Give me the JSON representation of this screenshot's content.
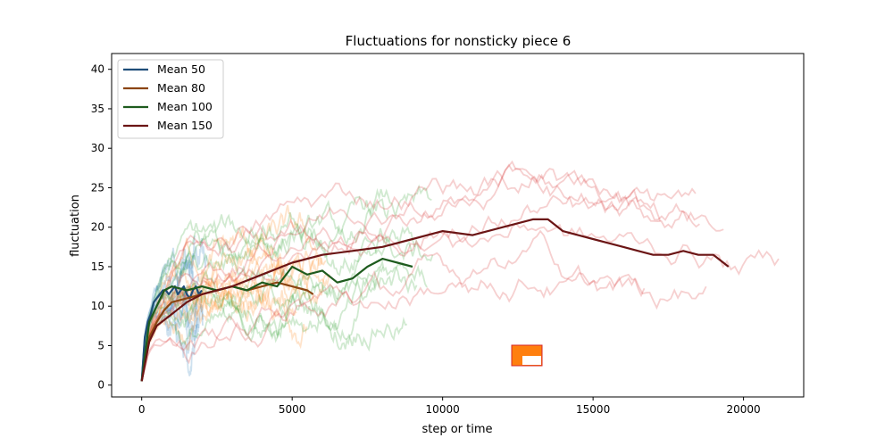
{
  "chart_data": {
    "type": "line",
    "title": "Fluctuations for nonsticky piece 6",
    "xlabel": "step or time",
    "ylabel": "fluctuation",
    "xlim": [
      -1000,
      22000
    ],
    "ylim": [
      -1.5,
      42
    ],
    "xticks": [
      0,
      5000,
      10000,
      15000,
      20000
    ],
    "xtick_labels": [
      "0",
      "5000",
      "10000",
      "15000",
      "20000"
    ],
    "yticks": [
      0,
      5,
      10,
      15,
      20,
      25,
      30,
      35,
      40
    ],
    "ytick_labels": [
      "0",
      "5",
      "10",
      "15",
      "20",
      "25",
      "30",
      "35",
      "40"
    ],
    "grid": false,
    "legend": {
      "position": "top-left",
      "entries": [
        "Mean 50",
        "Mean 80",
        "Mean 100",
        "Mean 150"
      ]
    },
    "series": [
      {
        "name": "Mean 50",
        "color": "#1f4e79",
        "x": [
          0,
          100,
          200,
          300,
          400,
          500,
          600,
          700,
          800,
          900,
          1000,
          1100,
          1200,
          1300,
          1400,
          1500,
          1600,
          1700,
          1800,
          1900,
          2000
        ],
        "y": [
          0.5,
          6.0,
          8.0,
          9.0,
          10.5,
          11.0,
          11.5,
          12.0,
          12.0,
          11.5,
          12.0,
          12.5,
          11.5,
          12.0,
          12.5,
          11.5,
          11.0,
          12.0,
          12.5,
          11.5,
          12.0
        ]
      },
      {
        "name": "Mean 80",
        "color": "#8b4513",
        "x": [
          0,
          250,
          500,
          750,
          1000,
          1500,
          2000,
          2500,
          3000,
          3500,
          4000,
          4500,
          5000,
          5500,
          5700
        ],
        "y": [
          0.5,
          6.0,
          8.0,
          9.5,
          10.5,
          11.0,
          11.5,
          12.0,
          12.5,
          12.0,
          12.5,
          13.0,
          12.5,
          12.0,
          11.5
        ]
      },
      {
        "name": "Mean 100",
        "color": "#1e5b1e",
        "x": [
          0,
          250,
          500,
          750,
          1000,
          1500,
          2000,
          2500,
          3000,
          3500,
          4000,
          4500,
          5000,
          5500,
          6000,
          6500,
          7000,
          7500,
          8000,
          8500,
          9000
        ],
        "y": [
          0.5,
          8.0,
          10.0,
          12.0,
          12.5,
          12.0,
          12.5,
          12.0,
          12.5,
          12.0,
          13.0,
          12.5,
          15.0,
          14.0,
          14.5,
          13.0,
          13.5,
          15.0,
          16.0,
          15.5,
          15.0
        ]
      },
      {
        "name": "Mean 150",
        "color": "#6b1515",
        "x": [
          0,
          250,
          500,
          1000,
          1500,
          2000,
          3000,
          4000,
          5000,
          6000,
          7000,
          8000,
          9000,
          10000,
          11000,
          12000,
          12500,
          13000,
          13500,
          14000,
          14500,
          15000,
          15500,
          16000,
          16500,
          17000,
          17500,
          18000,
          18500,
          19000,
          19500
        ],
        "y": [
          0.5,
          5.5,
          7.5,
          9.0,
          10.5,
          11.5,
          12.5,
          14.0,
          15.5,
          16.5,
          17.0,
          17.5,
          18.5,
          19.5,
          19.0,
          20.0,
          20.5,
          21.0,
          21.0,
          19.5,
          19.0,
          18.5,
          18.0,
          17.5,
          17.0,
          16.5,
          16.5,
          17.0,
          16.5,
          16.5,
          15.0
        ]
      }
    ],
    "individual_series_colors": {
      "Mean 50": "#1f77b4",
      "Mean 80": "#ff7f0e",
      "Mean 100": "#2ca02c",
      "Mean 150": "#d62728"
    }
  }
}
